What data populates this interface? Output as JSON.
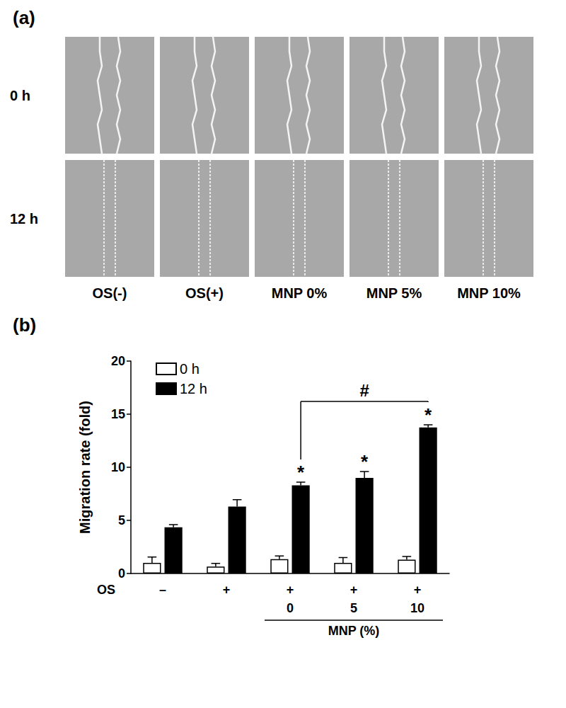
{
  "figure_a": {
    "panel_label": "(a)",
    "row_labels": [
      "0 h",
      "12 h"
    ],
    "column_labels": [
      "OS(-)",
      "OS(+)",
      "MNP 0%",
      "MNP 5%",
      "MNP 10%"
    ]
  },
  "chart_data": {
    "panel_label": "(b)",
    "type": "bar",
    "y_label": "Migration rate (fold)",
    "category_row_label": "OS",
    "categories": [
      "–",
      "+",
      "+",
      "+",
      "+"
    ],
    "sub_categories": [
      null,
      null,
      "0",
      "5",
      "10"
    ],
    "sub_categories_label": "MNP (%)",
    "series": [
      {
        "name": "0 h",
        "color": "#ffffff",
        "values": [
          1.0,
          0.65,
          1.35,
          1.0,
          1.3
        ],
        "errors": [
          0.55,
          0.3,
          0.3,
          0.5,
          0.3
        ]
      },
      {
        "name": "12 h",
        "color": "#000000",
        "values": [
          4.35,
          6.3,
          8.3,
          9.0,
          13.75
        ],
        "errors": [
          0.25,
          0.65,
          0.3,
          0.6,
          0.25
        ]
      }
    ],
    "ylim": [
      0,
      20
    ],
    "yticks": [
      0,
      5,
      10,
      15,
      20
    ],
    "grid": false,
    "legend": "upper left",
    "annotations": [
      {
        "text": "*",
        "series": "12 h",
        "index": 2
      },
      {
        "text": "*",
        "series": "12 h",
        "index": 3
      },
      {
        "text": "*",
        "series": "12 h",
        "index": 4
      }
    ],
    "bracket": {
      "text": "#",
      "series": "12 h",
      "from": 2,
      "to": 4,
      "y": 16.2
    }
  }
}
